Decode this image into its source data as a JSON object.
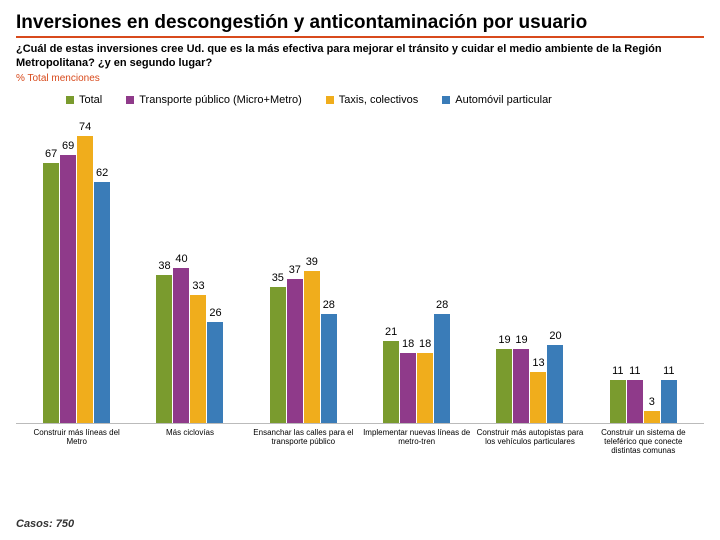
{
  "title": "Inversiones en descongestión y anticontaminación por usuario",
  "subtitle": "¿Cuál de estas inversiones cree Ud. que es la más efectiva para mejorar el tránsito y cuidar el medio ambiente de la Región Metropolitana? ¿y en segundo lugar?",
  "sublabel": "% Total menciones",
  "footer": "Casos: 750",
  "chart": {
    "type": "bar",
    "ymax": 80,
    "series": [
      {
        "name": "Total",
        "color": "#7a9b2e"
      },
      {
        "name": "Transporte público (Micro+Metro)",
        "color": "#8f3a8a"
      },
      {
        "name": "Taxis, colectivos",
        "color": "#f0ad1c"
      },
      {
        "name": "Automóvil particular",
        "color": "#3a7cb8"
      }
    ],
    "categories": [
      "Construir más líneas del Metro",
      "Más ciclovías",
      "Ensanchar las calles para el transporte público",
      "Implementar nuevas líneas de metro-tren",
      "Construir más autopistas para los vehículos particulares",
      "Construir un sistema de teleférico que conecte distintas comunas"
    ],
    "values": [
      [
        67,
        69,
        74,
        62
      ],
      [
        38,
        40,
        33,
        26
      ],
      [
        35,
        37,
        39,
        28
      ],
      [
        21,
        18,
        18,
        28
      ],
      [
        19,
        19,
        13,
        20
      ],
      [
        11,
        11,
        3,
        11
      ]
    ]
  }
}
